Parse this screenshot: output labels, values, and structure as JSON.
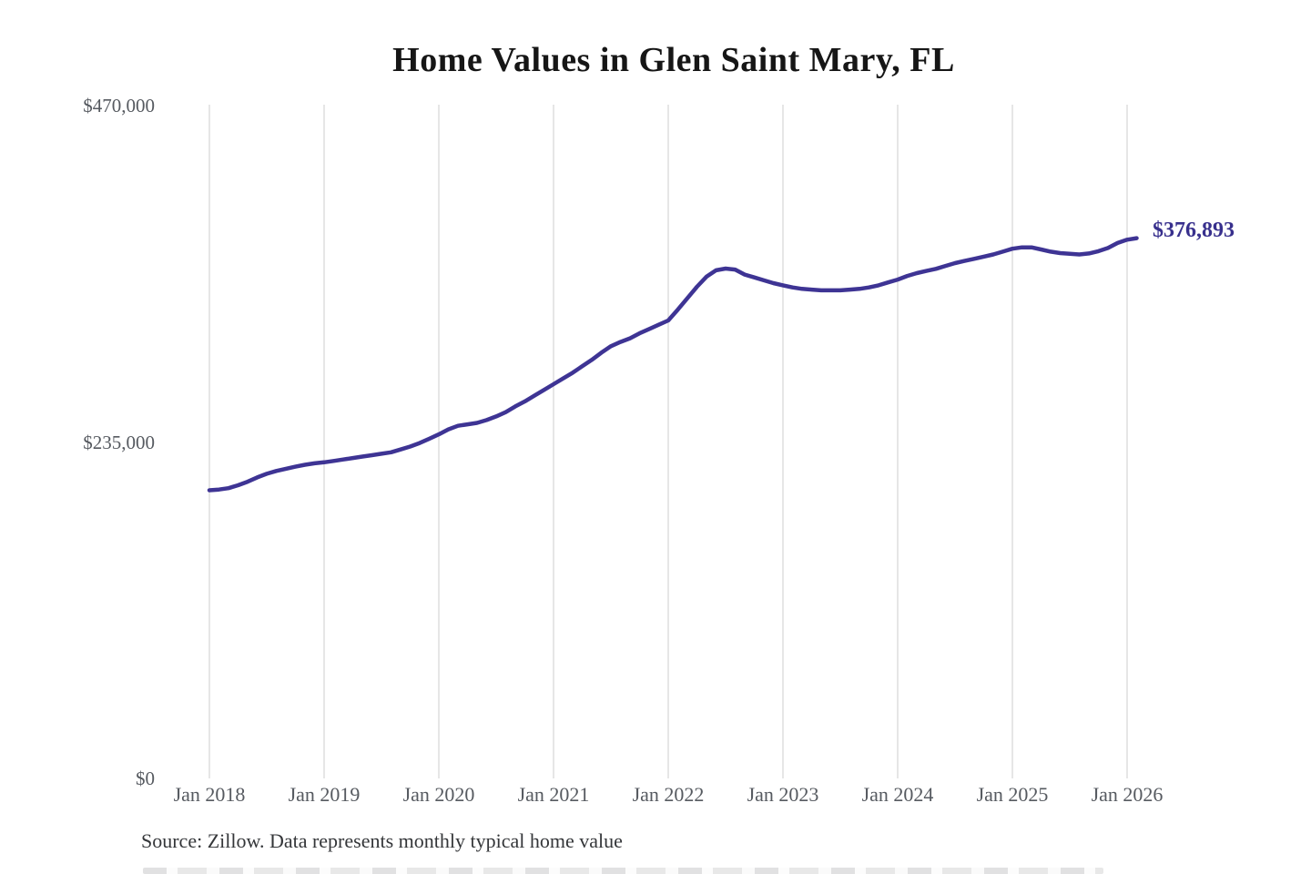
{
  "title": "Home Values in Glen Saint Mary, FL",
  "end_value_label": "$376,893",
  "source_note": "Source: Zillow. Data represents monthly typical home value",
  "colors": {
    "line": "#3e3494",
    "end_label": "#38308d",
    "gridline": "#cccccc",
    "axis_text": "#565a60",
    "title_text": "#161616",
    "source_text": "#343639",
    "background": "#ffffff"
  },
  "chart_data": {
    "type": "line",
    "title": "Home Values in Glen Saint Mary, FL",
    "x_tick_labels": [
      "Jan 2018",
      "Jan 2019",
      "Jan 2020",
      "Jan 2021",
      "Jan 2022",
      "Jan 2023",
      "Jan 2024",
      "Jan 2025",
      "Jan 2026"
    ],
    "y_ticks": [
      {
        "label": "$0",
        "value": 0
      },
      {
        "label": "$235,000",
        "value": 235000
      },
      {
        "label": "$470,000",
        "value": 470000
      }
    ],
    "ylim": [
      0,
      470000
    ],
    "grid": "vertical-only",
    "legend_position": "none",
    "annotation": {
      "text": "$376,893",
      "value": 376893,
      "position": "end-of-line"
    },
    "series": [
      {
        "name": "Monthly typical home value",
        "start": "Jan 2018",
        "end": "Feb 2026",
        "frequency": "monthly",
        "values": [
          201000,
          201500,
          202500,
          204500,
          207000,
          210000,
          212500,
          214500,
          216000,
          217500,
          218800,
          219800,
          220500,
          221500,
          222500,
          223500,
          224500,
          225500,
          226500,
          227500,
          229500,
          231500,
          234000,
          237000,
          240000,
          243500,
          246000,
          247000,
          248000,
          250000,
          252500,
          255500,
          259500,
          263000,
          267000,
          271000,
          275000,
          279000,
          283000,
          287500,
          292000,
          297000,
          301500,
          304500,
          307000,
          310500,
          313500,
          316500,
          319500,
          327000,
          335000,
          343000,
          350000,
          354500,
          355700,
          355000,
          351500,
          349500,
          347500,
          345500,
          344000,
          342500,
          341500,
          341000,
          340500,
          340500,
          340500,
          341000,
          341500,
          342500,
          344000,
          346000,
          348000,
          350500,
          352500,
          354000,
          355500,
          357500,
          359500,
          361000,
          362500,
          364000,
          365500,
          367500,
          369500,
          370500,
          370500,
          369000,
          367500,
          366500,
          366000,
          365500,
          366200,
          367800,
          370000,
          373500,
          375800,
          376893
        ]
      }
    ]
  }
}
